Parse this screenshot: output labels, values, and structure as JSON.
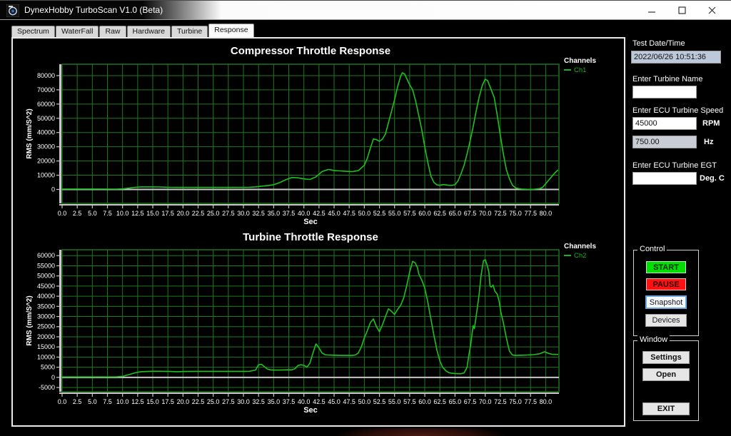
{
  "window": {
    "title": "DynexHobby TurboScan V1.0 (Beta)"
  },
  "tabs": [
    "Spectrum",
    "WaterFall",
    "Raw",
    "Hardware",
    "Turbine",
    "Response"
  ],
  "active_tab": "Response",
  "sidebar": {
    "test_datetime_label": "Test Date/Time",
    "test_datetime_value": "2022/06/26 10:51:36",
    "turbine_name_label": "Enter Turbine Name",
    "turbine_name_value": "",
    "ecu_speed_label": "Enter ECU Turbine Speed",
    "ecu_speed_value": "45000",
    "ecu_speed_unit": "RPM",
    "ecu_hz_value": "750.00",
    "ecu_hz_unit": "Hz",
    "ecu_egt_label": "Enter ECU Turbine EGT",
    "ecu_egt_value": "",
    "ecu_egt_unit": "Deg. C"
  },
  "control_group": {
    "label": "Control",
    "buttons": [
      {
        "label": "START",
        "bg": "#00dd00",
        "fg": "#002a00",
        "border": "#bfe8bf",
        "bold": true
      },
      {
        "label": "PAUSE",
        "bg": "#ff1111",
        "fg": "#2a0000",
        "border": "#e8bfbf",
        "bold": true
      },
      {
        "label": "Snapshot",
        "bg": "#f7fbff",
        "fg": "#111111",
        "border": "#6aa5dd",
        "bold": false
      },
      {
        "label": "Devices",
        "bg": "#e6e6e6",
        "fg": "#222222",
        "border": "#9a9a9a",
        "bold": false
      }
    ]
  },
  "window_group": {
    "label": "Window",
    "buttons": [
      {
        "label": "Settings",
        "bg": "#e6e6e6",
        "fg": "#111111",
        "border": "#9a9a9a",
        "bold": true
      },
      {
        "label": "Open",
        "bg": "#e6e6e6",
        "fg": "#111111",
        "border": "#9a9a9a",
        "bold": true
      },
      {
        "label": "EXIT",
        "bg": "#e6e6e6",
        "fg": "#111111",
        "border": "#9a9a9a",
        "bold": true
      }
    ]
  },
  "colors": {
    "line_green": "#1fc11f",
    "grid_green": "#1d7a1d",
    "legend_green": "#18b418",
    "axis_gray": "#c8c8c8",
    "text_white": "#ffffff"
  },
  "chart_data": [
    {
      "type": "line",
      "title": "Compressor Throttle Response",
      "xlabel": "Sec",
      "ylabel": "RMS (mm/S^2)",
      "legend_title": "Channels",
      "xlim": [
        0,
        82.2
      ],
      "ylim": [
        -9800,
        88000
      ],
      "xticks": [
        0,
        2.5,
        5,
        7.5,
        10,
        12.5,
        15,
        17.5,
        20,
        22.5,
        25,
        27.5,
        30,
        32.5,
        35,
        37.5,
        40,
        42.5,
        45,
        47.5,
        50,
        52.5,
        55,
        57.5,
        60,
        62.5,
        65,
        67.5,
        70,
        72.5,
        75,
        77.5,
        80
      ],
      "yticks": [
        0,
        10000,
        20000,
        30000,
        40000,
        50000,
        60000,
        70000,
        80000
      ],
      "series": [
        {
          "name": "Ch1",
          "points": [
            [
              0,
              300
            ],
            [
              2,
              300
            ],
            [
              4,
              300
            ],
            [
              6,
              300
            ],
            [
              8,
              250
            ],
            [
              9,
              200
            ],
            [
              10,
              400
            ],
            [
              11,
              900
            ],
            [
              12,
              1500
            ],
            [
              13,
              1800
            ],
            [
              14,
              1800
            ],
            [
              15,
              1800
            ],
            [
              16,
              1750
            ],
            [
              17,
              1600
            ],
            [
              18,
              1500
            ],
            [
              20,
              1450
            ],
            [
              22,
              1450
            ],
            [
              24,
              1450
            ],
            [
              26,
              1450
            ],
            [
              28,
              1450
            ],
            [
              30,
              1500
            ],
            [
              31,
              1550
            ],
            [
              32,
              1800
            ],
            [
              33,
              2300
            ],
            [
              34,
              2700
            ],
            [
              35,
              3300
            ],
            [
              36,
              4800
            ],
            [
              37,
              6800
            ],
            [
              38,
              8400
            ],
            [
              39,
              8200
            ],
            [
              40,
              7400
            ],
            [
              41,
              7000
            ],
            [
              42,
              8800
            ],
            [
              43,
              12500
            ],
            [
              44,
              14000
            ],
            [
              44.5,
              13800
            ],
            [
              45,
              13200
            ],
            [
              46,
              13000
            ],
            [
              47,
              12700
            ],
            [
              48,
              12500
            ],
            [
              49,
              13200
            ],
            [
              50,
              17000
            ],
            [
              50.5,
              22000
            ],
            [
              51,
              29000
            ],
            [
              51.5,
              35500
            ],
            [
              52,
              35000
            ],
            [
              52.5,
              33800
            ],
            [
              53,
              35500
            ],
            [
              53.5,
              39000
            ],
            [
              54,
              47000
            ],
            [
              54.5,
              55000
            ],
            [
              55,
              63000
            ],
            [
              55.5,
              72000
            ],
            [
              56,
              79500
            ],
            [
              56.3,
              82000
            ],
            [
              56.7,
              81000
            ],
            [
              57,
              78000
            ],
            [
              57.5,
              73500
            ],
            [
              58,
              70000
            ],
            [
              58.5,
              62000
            ],
            [
              59,
              52000
            ],
            [
              59.5,
              42000
            ],
            [
              60,
              30000
            ],
            [
              60.5,
              19000
            ],
            [
              61,
              9500
            ],
            [
              61.5,
              5000
            ],
            [
              62,
              3200
            ],
            [
              62.5,
              2900
            ],
            [
              63,
              3400
            ],
            [
              63.5,
              3200
            ],
            [
              64,
              2900
            ],
            [
              64.5,
              2900
            ],
            [
              65,
              3300
            ],
            [
              65.5,
              6000
            ],
            [
              66,
              11000
            ],
            [
              66.5,
              17000
            ],
            [
              67,
              25000
            ],
            [
              67.5,
              34000
            ],
            [
              68,
              44000
            ],
            [
              68.5,
              55000
            ],
            [
              69,
              65000
            ],
            [
              69.5,
              73000
            ],
            [
              70,
              77500
            ],
            [
              70.4,
              76500
            ],
            [
              71,
              70000
            ],
            [
              71.5,
              64500
            ],
            [
              72,
              52000
            ],
            [
              72.5,
              38000
            ],
            [
              73,
              25000
            ],
            [
              73.5,
              14000
            ],
            [
              74,
              7500
            ],
            [
              74.5,
              3000
            ],
            [
              75,
              1200
            ],
            [
              75.5,
              600
            ],
            [
              76,
              300
            ],
            [
              77,
              100
            ],
            [
              78,
              100
            ],
            [
              79,
              600
            ],
            [
              79.5,
              1500
            ],
            [
              80,
              4000
            ],
            [
              80.5,
              6500
            ],
            [
              81,
              9000
            ],
            [
              81.5,
              11500
            ],
            [
              82,
              13500
            ]
          ]
        }
      ]
    },
    {
      "type": "line",
      "title": "Turbine Throttle Response",
      "xlabel": "Sec",
      "ylabel": "RMS (mm/S^2)",
      "legend_title": "Channels",
      "xlim": [
        0,
        82.2
      ],
      "ylim": [
        -7100,
        62900
      ],
      "xticks": [
        0,
        2.5,
        5,
        7.5,
        10,
        12.5,
        15,
        17.5,
        20,
        22.5,
        25,
        27.5,
        30,
        32.5,
        35,
        37.5,
        40,
        42.5,
        45,
        47.5,
        50,
        52.5,
        55,
        57.5,
        60,
        62.5,
        65,
        67.5,
        70,
        72.5,
        75,
        77.5,
        80
      ],
      "yticks": [
        -5000,
        0,
        5000,
        10000,
        15000,
        20000,
        25000,
        30000,
        35000,
        40000,
        45000,
        50000,
        55000,
        60000
      ],
      "series": [
        {
          "name": "Ch2",
          "points": [
            [
              0,
              200
            ],
            [
              2,
              200
            ],
            [
              4,
              200
            ],
            [
              6,
              200
            ],
            [
              8,
              200
            ],
            [
              9,
              250
            ],
            [
              10,
              500
            ],
            [
              11,
              1300
            ],
            [
              12,
              2200
            ],
            [
              13,
              2800
            ],
            [
              14,
              2900
            ],
            [
              15,
              3000
            ],
            [
              16,
              3000
            ],
            [
              17,
              2950
            ],
            [
              18,
              2900
            ],
            [
              19,
              2800
            ],
            [
              20,
              2900
            ],
            [
              22,
              2950
            ],
            [
              24,
              2950
            ],
            [
              26,
              2950
            ],
            [
              28,
              2950
            ],
            [
              30,
              2950
            ],
            [
              31,
              3000
            ],
            [
              32,
              3600
            ],
            [
              32.5,
              6200
            ],
            [
              33,
              6400
            ],
            [
              33.5,
              5200
            ],
            [
              34,
              4000
            ],
            [
              34.5,
              3700
            ],
            [
              35,
              3600
            ],
            [
              36,
              3600
            ],
            [
              37,
              3700
            ],
            [
              38,
              3700
            ],
            [
              38.5,
              4200
            ],
            [
              39,
              5800
            ],
            [
              39.5,
              6200
            ],
            [
              40,
              5900
            ],
            [
              40.5,
              5000
            ],
            [
              41,
              7000
            ],
            [
              41.5,
              12000
            ],
            [
              42,
              16500
            ],
            [
              42.5,
              14500
            ],
            [
              43,
              12000
            ],
            [
              43.5,
              11200
            ],
            [
              44,
              11000
            ],
            [
              45,
              10900
            ],
            [
              46,
              10800
            ],
            [
              47,
              10800
            ],
            [
              48,
              10800
            ],
            [
              48.5,
              11000
            ],
            [
              49,
              12000
            ],
            [
              49.5,
              15000
            ],
            [
              50,
              19500
            ],
            [
              50.5,
              23000
            ],
            [
              51,
              27000
            ],
            [
              51.5,
              28800
            ],
            [
              52,
              25000
            ],
            [
              52.5,
              22500
            ],
            [
              53,
              26000
            ],
            [
              53.5,
              30000
            ],
            [
              54,
              33800
            ],
            [
              54.5,
              32500
            ],
            [
              55,
              31000
            ],
            [
              55.5,
              33500
            ],
            [
              56,
              35500
            ],
            [
              56.5,
              39000
            ],
            [
              57,
              45000
            ],
            [
              57.5,
              52000
            ],
            [
              58,
              57200
            ],
            [
              58.4,
              56500
            ],
            [
              58.8,
              54000
            ],
            [
              59,
              51000
            ],
            [
              59.5,
              48000
            ],
            [
              60,
              44000
            ],
            [
              60.5,
              37000
            ],
            [
              61,
              29000
            ],
            [
              61.5,
              21000
            ],
            [
              62,
              13500
            ],
            [
              62.5,
              8000
            ],
            [
              63,
              4800
            ],
            [
              63.5,
              3200
            ],
            [
              64,
              2300
            ],
            [
              64.5,
              2000
            ],
            [
              65,
              1900
            ],
            [
              65.5,
              1800
            ],
            [
              66,
              1800
            ],
            [
              66.5,
              2200
            ],
            [
              67,
              5000
            ],
            [
              67.3,
              11000
            ],
            [
              67.6,
              16000
            ],
            [
              67.8,
              21000
            ],
            [
              68,
              25500
            ],
            [
              68.2,
              24000
            ],
            [
              68.5,
              30000
            ],
            [
              69,
              41000
            ],
            [
              69.3,
              50000
            ],
            [
              69.7,
              57500
            ],
            [
              70,
              58000
            ],
            [
              70.3,
              55500
            ],
            [
              70.6,
              52000
            ],
            [
              70.8,
              45000
            ],
            [
              71,
              44500
            ],
            [
              71.3,
              45500
            ],
            [
              71.6,
              42500
            ],
            [
              72,
              41000
            ],
            [
              72.3,
              37500
            ],
            [
              72.6,
              32000
            ],
            [
              73,
              27000
            ],
            [
              73.5,
              19500
            ],
            [
              74,
              13000
            ],
            [
              74.5,
              11000
            ],
            [
              75,
              10800
            ],
            [
              76,
              10900
            ],
            [
              77,
              11000
            ],
            [
              78,
              11200
            ],
            [
              79,
              11600
            ],
            [
              79.8,
              12600
            ],
            [
              80.5,
              11800
            ],
            [
              81,
              11400
            ],
            [
              82,
              11300
            ]
          ]
        }
      ]
    }
  ]
}
